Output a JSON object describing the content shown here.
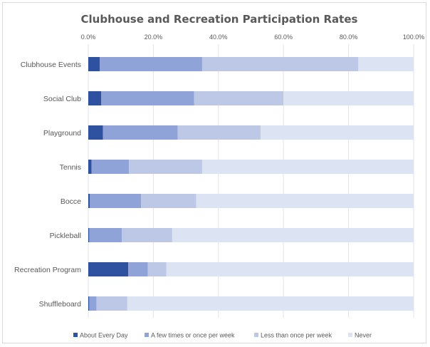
{
  "chart_data": {
    "type": "bar",
    "orientation": "horizontal",
    "stacked": true,
    "title": "Clubhouse and Recreation Participation Rates",
    "xlabel": "",
    "ylabel": "",
    "xlim": [
      0,
      100
    ],
    "x_ticks": [
      "0.0%",
      "20.0%",
      "40.0%",
      "60.0%",
      "80.0%",
      "100.0%"
    ],
    "grid": "vertical",
    "legend_position": "bottom",
    "categories": [
      "Clubhouse Events",
      "Social Club",
      "Playground",
      "Tennis",
      "Bocce",
      "Pickleball",
      "Recreation Program",
      "Shuffleboard"
    ],
    "series": [
      {
        "name": "About Every Day",
        "color": "#2f52a0",
        "values": [
          3.5,
          4.0,
          4.5,
          1.0,
          0.5,
          0.3,
          12.3,
          0.3
        ]
      },
      {
        "name": "A few times or once per week",
        "color": "#8fa3d9",
        "values": [
          31.5,
          28.5,
          23.0,
          11.5,
          15.7,
          10.0,
          6.0,
          2.2
        ]
      },
      {
        "name": "Less than once per week",
        "color": "#bdc7e6",
        "values": [
          48.0,
          27.5,
          25.5,
          22.5,
          17.0,
          15.5,
          5.7,
          9.5
        ]
      },
      {
        "name": "Never",
        "color": "#dce3f2",
        "values": [
          17.0,
          40.0,
          47.0,
          65.0,
          66.8,
          74.2,
          76.0,
          88.0
        ]
      }
    ]
  }
}
